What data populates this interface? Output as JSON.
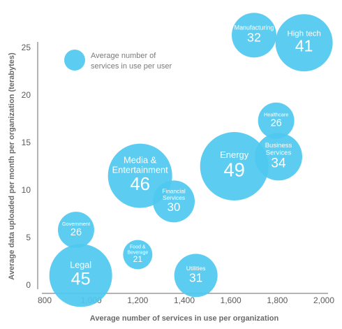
{
  "chart_data": {
    "type": "scatter",
    "xlabel": "Average number of services in use per organization",
    "ylabel": "Average data uploaded per month per organization (terabytes)",
    "xlim": [
      800,
      2000
    ],
    "ylim": [
      0,
      25
    ],
    "x_ticks": [
      "800",
      "1,000",
      "1,200",
      "1,400",
      "1,600",
      "1,800",
      "2,000"
    ],
    "y_ticks": [
      "0",
      "5",
      "10",
      "15",
      "20",
      "25"
    ],
    "grid": false,
    "legend": {
      "placement": "top-left",
      "line1": "Average number of",
      "line2": "services in use per user"
    },
    "bubble_color": "#4ec9f0",
    "points": [
      {
        "lines": [
          "Manufacturing"
        ],
        "x": 1700,
        "y": 26.3,
        "size": 32
      },
      {
        "lines": [
          "High tech"
        ],
        "x": 1915,
        "y": 25.5,
        "size": 41
      },
      {
        "lines": [
          "Healthcare"
        ],
        "x": 1795,
        "y": 17.3,
        "size": 26
      },
      {
        "lines": [
          "Business",
          "Services"
        ],
        "x": 1805,
        "y": 13.5,
        "size": 34
      },
      {
        "lines": [
          "Energy"
        ],
        "x": 1615,
        "y": 12.5,
        "size": 49
      },
      {
        "lines": [
          "Media &",
          "Entertainment"
        ],
        "x": 1210,
        "y": 11.5,
        "size": 46
      },
      {
        "lines": [
          "Financial",
          "Services"
        ],
        "x": 1355,
        "y": 8.8,
        "size": 30
      },
      {
        "lines": [
          "Government"
        ],
        "x": 935,
        "y": 5.8,
        "size": 26
      },
      {
        "lines": [
          "Food &",
          "Beverage"
        ],
        "x": 1200,
        "y": 3.2,
        "size": 21
      },
      {
        "lines": [
          "Legal"
        ],
        "x": 955,
        "y": 1.0,
        "size": 45
      },
      {
        "lines": [
          "Utilities"
        ],
        "x": 1450,
        "y": 1.0,
        "size": 31
      }
    ]
  }
}
